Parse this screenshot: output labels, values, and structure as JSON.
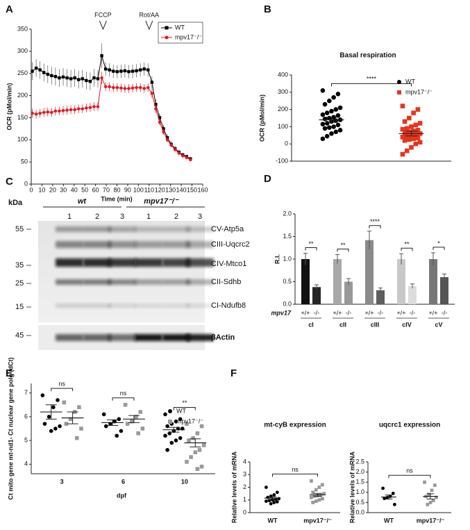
{
  "chart_data": [
    {
      "type": "line",
      "panel": "A",
      "xlabel": "Time (min)",
      "ylabel": "OCR (pMol/min)",
      "xlim": [
        0,
        160
      ],
      "xticks": [
        0,
        10,
        20,
        30,
        40,
        50,
        60,
        70,
        80,
        90,
        100,
        110,
        120,
        130,
        140,
        150,
        160
      ],
      "ylim": [
        0,
        350
      ],
      "yticks": [
        0,
        50,
        100,
        150,
        200,
        250,
        300,
        350
      ],
      "annotations": [
        {
          "text": "FCCP",
          "x": 67
        },
        {
          "text": "Rot/AA",
          "x": 110
        }
      ],
      "legend": "upper right",
      "x": [
        1,
        4.6,
        8.2,
        11.8,
        15.4,
        19,
        22.6,
        26.2,
        29.8,
        33.4,
        37,
        40.6,
        44.2,
        47.8,
        51.4,
        55,
        58.6,
        62.2,
        65.8,
        69.4,
        73,
        76.6,
        80.2,
        83.8,
        87.4,
        91,
        94.6,
        98.2,
        101.8,
        105.4,
        109,
        112.6,
        116.2,
        119.8,
        123.4,
        127,
        130.6,
        134.2,
        137.8,
        141.4,
        145,
        148.6
      ],
      "series": [
        {
          "name": "WT",
          "color": "#000000",
          "marker": "square",
          "values": [
            255,
            262,
            258,
            252,
            248,
            245,
            243,
            240,
            242,
            240,
            238,
            240,
            236,
            238,
            234,
            232,
            240,
            238,
            290,
            260,
            258,
            255,
            254,
            255,
            256,
            254,
            255,
            256,
            258,
            260,
            258,
            230,
            180,
            150,
            125,
            105,
            90,
            80,
            72,
            66,
            62,
            57
          ],
          "errors": [
            20,
            20,
            20,
            20,
            20,
            20,
            20,
            20,
            20,
            20,
            20,
            20,
            20,
            20,
            20,
            20,
            20,
            20,
            28,
            15,
            15,
            15,
            15,
            15,
            15,
            15,
            15,
            15,
            15,
            15,
            15,
            14,
            12,
            10,
            9,
            8,
            7,
            6,
            6,
            5,
            5,
            5
          ]
        },
        {
          "name": "mpv17⁻/⁻",
          "color": "#e8141e",
          "marker": "circle",
          "values": [
            160,
            158,
            160,
            162,
            163,
            162,
            165,
            165,
            166,
            167,
            168,
            168,
            170,
            170,
            172,
            173,
            175,
            175,
            240,
            220,
            220,
            218,
            218,
            217,
            216,
            216,
            217,
            218,
            218,
            216,
            218,
            205,
            170,
            140,
            118,
            100,
            88,
            78,
            70,
            64,
            60,
            55
          ],
          "errors": [
            10,
            10,
            10,
            10,
            10,
            10,
            10,
            10,
            10,
            10,
            10,
            10,
            10,
            10,
            10,
            10,
            10,
            10,
            14,
            10,
            10,
            10,
            10,
            10,
            10,
            10,
            10,
            10,
            10,
            10,
            10,
            10,
            9,
            8,
            7,
            6,
            5,
            5,
            5,
            5,
            4,
            4
          ]
        }
      ]
    },
    {
      "type": "strip",
      "panel": "B",
      "title": "Basal respiration",
      "ylabel": "OCR (pMol/min)",
      "ylim": [
        -100,
        400
      ],
      "yticks": [
        -100,
        0,
        100,
        200,
        300,
        400
      ],
      "legend": "upper right",
      "significance": [
        "****"
      ],
      "series": [
        {
          "name": "WT",
          "color": "#000000",
          "marker": "circle",
          "values": [
            [
              310,
              290,
              270,
              250,
              230,
              210,
              200,
              190,
              180,
              170,
              165,
              155,
              150,
              145,
              140,
              135,
              130,
              120,
              115,
              110,
              100,
              95,
              90,
              80,
              70,
              60,
              45,
              30
            ]
          ],
          "mean": [
            140
          ],
          "sem": [
            15
          ]
        },
        {
          "name": "mpv17⁻/⁻",
          "color": "#e8341c",
          "marker": "square",
          "values": [
            [
              220,
              200,
              180,
              150,
              130,
              120,
              110,
              100,
              90,
              85,
              80,
              75,
              70,
              65,
              60,
              55,
              50,
              45,
              40,
              35,
              30,
              25,
              20,
              10,
              0,
              -20,
              -40,
              -60
            ]
          ],
          "mean": [
            60
          ],
          "sem": [
            14
          ]
        }
      ]
    },
    {
      "type": "bar",
      "panel": "D",
      "ylabel": "R.I.",
      "group_label": "mpv17",
      "ylim": [
        0,
        2
      ],
      "yticks": [
        {
          "value": 0,
          "label": "0.0"
        },
        0.5,
        {
          "value": 1,
          "label": "1.0"
        },
        1.5,
        {
          "value": 2,
          "label": "2.0"
        }
      ],
      "categories": [
        "cI",
        "cII",
        "cIII",
        "cIV",
        "cV"
      ],
      "significance": [
        "**",
        "**",
        "****",
        "**",
        "*"
      ],
      "series": [
        {
          "name": "+/+",
          "colors": [
            "#111111",
            "#a8a8a8",
            "#8a8a8a",
            "#c8c8c8",
            "#777777"
          ],
          "values": [
            1,
            1,
            1.42,
            1,
            1
          ],
          "errors": [
            0.13,
            0.1,
            0.2,
            0.12,
            0.14
          ]
        },
        {
          "name": "-/-",
          "colors": [
            "#262626",
            "#999999",
            "#5e5e5e",
            "#dcdcdc",
            "#555555"
          ],
          "values": [
            0.38,
            0.5,
            0.31,
            0.4,
            0.6
          ],
          "errors": [
            0.05,
            0.07,
            0.05,
            0.05,
            0.07
          ]
        }
      ]
    },
    {
      "type": "strip",
      "panel": "E",
      "xlabel": "dpf",
      "ylabel": "Ct mito gene mt-nd1- Ct nuclear gene polg (dCt)",
      "ylim": [
        3.6,
        7.4
      ],
      "yticks": [
        4,
        5,
        6,
        7
      ],
      "legend": "upper right",
      "categories": [
        3,
        6,
        10
      ],
      "significance": [
        "ns",
        "ns",
        "**"
      ],
      "series": [
        {
          "name": "WT",
          "color": "#000000",
          "marker": "circle",
          "values": [
            [
              6.9,
              6.7,
              6.4,
              6.0,
              5.7,
              5.6,
              5.5,
              5.4
            ],
            [
              6.1,
              5.9,
              5.8,
              5.7,
              5.6,
              5.4,
              5.2
            ],
            [
              6.1,
              5.9,
              5.8,
              5.7,
              5.6,
              5.5,
              5.5,
              5.4,
              5.3,
              5.2,
              5.1,
              5.0,
              4.9,
              4.6
            ]
          ],
          "mean": [
            6.2,
            5.75,
            5.45
          ],
          "sem": [
            0.3,
            0.12,
            0.1
          ]
        },
        {
          "name": "mpv17⁻/⁻",
          "color": "#999999",
          "marker": "square",
          "values": [
            [
              6.6,
              6.4,
              6.2,
              5.9,
              5.7,
              5.5,
              5.1
            ],
            [
              6.5,
              6.2,
              6.0,
              5.8,
              5.7,
              5.5,
              5.3
            ],
            [
              5.7,
              5.6,
              5.3,
              5.1,
              5.0,
              4.8,
              4.6,
              4.5,
              4.3,
              4.1,
              3.9,
              3.8
            ]
          ],
          "mean": [
            5.95,
            5.9,
            4.9
          ],
          "sem": [
            0.25,
            0.15,
            0.17
          ]
        }
      ]
    },
    {
      "type": "strip",
      "panel": "F",
      "title": "mt-cyB expression",
      "ylabel": "Relative levels of mRNA",
      "ylim": [
        0,
        4
      ],
      "yticks": [
        0,
        1,
        2,
        3,
        4
      ],
      "categories": [
        "WT",
        "mpv17⁻/⁻"
      ],
      "significance": [
        "ns"
      ],
      "series": [
        {
          "color": "#000000",
          "marker": "circle",
          "values": [
            [
              2.0,
              1.6,
              1.4,
              1.3,
              1.2,
              1.1,
              1.05,
              1.0,
              0.95,
              0.9,
              0.85,
              0.8,
              0.7
            ]
          ],
          "mean": [
            1.15
          ],
          "sem": [
            0.1
          ]
        },
        {
          "color": "#999999",
          "marker": "square",
          "values": [
            [
              2.5,
              2.2,
              2.0,
              1.8,
              1.6,
              1.5,
              1.4,
              1.35,
              1.3,
              1.2,
              1.1,
              1.0,
              0.9,
              0.8
            ]
          ],
          "mean": [
            1.4
          ],
          "sem": [
            0.12
          ]
        }
      ]
    },
    {
      "type": "strip",
      "title": "uqcrc1 expression",
      "ylabel": "Relative levels of mRNA",
      "ylim": [
        0,
        2.5
      ],
      "yticks": [
        {
          "value": 0,
          "label": "0.0"
        },
        0.5,
        {
          "value": 1,
          "label": "1.0"
        },
        1.5,
        {
          "value": 2,
          "label": "2.0"
        },
        2.5
      ],
      "categories": [
        "WT",
        "mpv17⁻/⁻"
      ],
      "significance": [
        "ns"
      ],
      "series": [
        {
          "color": "#000000",
          "marker": "circle",
          "values": [
            [
              1.2,
              0.95,
              0.8,
              0.75,
              0.7,
              0.4
            ]
          ],
          "mean": [
            0.77
          ],
          "sem": [
            0.1
          ]
        },
        {
          "color": "#999999",
          "marker": "square",
          "values": [
            [
              1.5,
              1.35,
              1.1,
              0.9,
              0.8,
              0.75,
              0.6,
              0.5,
              0.4
            ]
          ],
          "mean": [
            0.8
          ],
          "sem": [
            0.13
          ]
        }
      ]
    }
  ],
  "blot": {
    "panel": "C",
    "unit": "kDa",
    "groups": [
      "wt",
      "mpv17⁻/⁻"
    ],
    "lanes": [
      "1",
      "2",
      "3",
      "1",
      "2",
      "3"
    ],
    "markers": [
      "55",
      "35",
      "25",
      "15",
      "45"
    ],
    "bands": [
      "CV-Atp5a",
      "CIII-Uqcrc2",
      "CIV-Mtco1",
      "CII-Sdhb",
      "CI-Ndufb8",
      "βActin"
    ]
  }
}
